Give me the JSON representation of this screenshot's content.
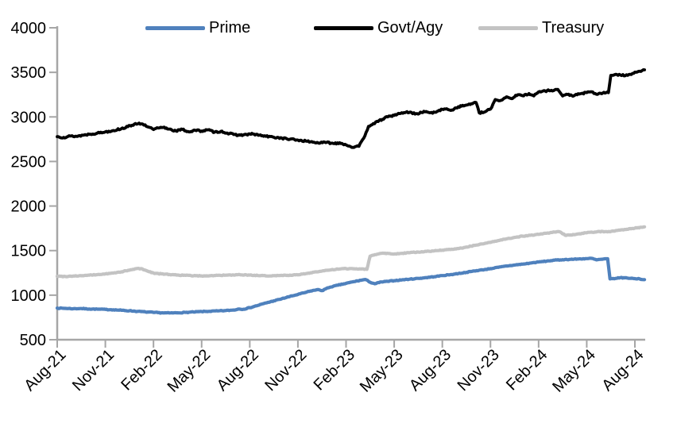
{
  "chart_data": {
    "type": "line",
    "title": "",
    "x_unit": "months since Aug-2021 (fractional = intra-month)",
    "x_axis": {
      "tick_labels": [
        "Aug-21",
        "Nov-21",
        "Feb-22",
        "May-22",
        "Aug-22",
        "Nov-22",
        "Feb-23",
        "May-23",
        "Aug-23",
        "Nov-23",
        "Feb-24",
        "May-24",
        "Aug-24"
      ],
      "tick_interval_months": 3,
      "label_rotation_deg": -45,
      "range_months": [
        0,
        36.6
      ]
    },
    "y_axis": {
      "ticks": [
        500,
        1000,
        1500,
        2000,
        2500,
        3000,
        3500,
        4000
      ],
      "min": 500,
      "max": 4000,
      "gridlines": false
    },
    "axis_color": "#A6A6A6",
    "label_color": "#000000",
    "legend": {
      "position": "top",
      "entries": [
        "Prime",
        "Govt/Agy",
        "Treasury"
      ]
    },
    "series": [
      {
        "name": "Prime",
        "color": "#4F81BD",
        "points": [
          [
            0,
            855
          ],
          [
            0.5,
            852
          ],
          [
            1,
            848
          ],
          [
            1.5,
            850
          ],
          [
            2,
            845
          ],
          [
            2.5,
            843
          ],
          [
            3,
            840
          ],
          [
            3.5,
            836
          ],
          [
            4,
            830
          ],
          [
            4.5,
            825
          ],
          [
            5,
            818
          ],
          [
            5.5,
            812
          ],
          [
            6,
            806
          ],
          [
            6.5,
            802
          ],
          [
            7,
            800
          ],
          [
            7.5,
            802
          ],
          [
            8,
            806
          ],
          [
            8.5,
            811
          ],
          [
            9,
            816
          ],
          [
            9.5,
            819
          ],
          [
            10,
            823
          ],
          [
            10.5,
            827
          ],
          [
            11,
            833
          ],
          [
            11.3,
            845
          ],
          [
            11.6,
            842
          ],
          [
            12,
            860
          ],
          [
            12.5,
            885
          ],
          [
            13,
            912
          ],
          [
            13.5,
            936
          ],
          [
            14,
            960
          ],
          [
            14.5,
            985
          ],
          [
            15,
            1008
          ],
          [
            15.5,
            1032
          ],
          [
            16,
            1055
          ],
          [
            16.3,
            1062
          ],
          [
            16.5,
            1050
          ],
          [
            16.7,
            1068
          ],
          [
            17,
            1090
          ],
          [
            17.5,
            1112
          ],
          [
            18,
            1132
          ],
          [
            18.5,
            1152
          ],
          [
            19,
            1170
          ],
          [
            19.2,
            1176
          ],
          [
            19.5,
            1145
          ],
          [
            19.8,
            1128
          ],
          [
            20.2,
            1148
          ],
          [
            20.6,
            1155
          ],
          [
            21,
            1163
          ],
          [
            21.5,
            1172
          ],
          [
            22,
            1180
          ],
          [
            22.5,
            1188
          ],
          [
            23,
            1197
          ],
          [
            23.5,
            1207
          ],
          [
            24,
            1220
          ],
          [
            24.5,
            1230
          ],
          [
            25,
            1243
          ],
          [
            25.5,
            1256
          ],
          [
            26,
            1272
          ],
          [
            26.5,
            1284
          ],
          [
            27,
            1298
          ],
          [
            27.5,
            1312
          ],
          [
            28,
            1327
          ],
          [
            28.5,
            1338
          ],
          [
            29,
            1348
          ],
          [
            29.5,
            1360
          ],
          [
            30,
            1372
          ],
          [
            30.5,
            1382
          ],
          [
            31,
            1392
          ],
          [
            31.5,
            1398
          ],
          [
            32,
            1402
          ],
          [
            32.5,
            1406
          ],
          [
            33,
            1410
          ],
          [
            33.3,
            1413
          ],
          [
            33.6,
            1396
          ],
          [
            34,
            1404
          ],
          [
            34.3,
            1408
          ],
          [
            34.45,
            1182
          ],
          [
            34.8,
            1188
          ],
          [
            35.1,
            1196
          ],
          [
            35.5,
            1193
          ],
          [
            36,
            1186
          ],
          [
            36.3,
            1182
          ],
          [
            36.6,
            1174
          ]
        ]
      },
      {
        "name": "Govt/Agy",
        "color": "#000000",
        "points": [
          [
            0,
            2778
          ],
          [
            0.4,
            2770
          ],
          [
            0.8,
            2785
          ],
          [
            1.2,
            2782
          ],
          [
            1.6,
            2795
          ],
          [
            2,
            2806
          ],
          [
            2.5,
            2818
          ],
          [
            3,
            2832
          ],
          [
            3.5,
            2848
          ],
          [
            4,
            2868
          ],
          [
            4.4,
            2890
          ],
          [
            4.8,
            2918
          ],
          [
            5.1,
            2930
          ],
          [
            5.4,
            2908
          ],
          [
            5.7,
            2885
          ],
          [
            6,
            2858
          ],
          [
            6.3,
            2875
          ],
          [
            6.6,
            2882
          ],
          [
            7,
            2864
          ],
          [
            7.4,
            2842
          ],
          [
            7.8,
            2860
          ],
          [
            8.2,
            2832
          ],
          [
            8.6,
            2850
          ],
          [
            9,
            2842
          ],
          [
            9.4,
            2855
          ],
          [
            9.8,
            2828
          ],
          [
            10.2,
            2838
          ],
          [
            10.6,
            2818
          ],
          [
            11,
            2802
          ],
          [
            11.4,
            2795
          ],
          [
            11.8,
            2802
          ],
          [
            12.2,
            2808
          ],
          [
            12.6,
            2795
          ],
          [
            13,
            2782
          ],
          [
            13.5,
            2772
          ],
          [
            14,
            2762
          ],
          [
            14.5,
            2750
          ],
          [
            15,
            2740
          ],
          [
            15.5,
            2728
          ],
          [
            16,
            2716
          ],
          [
            16.4,
            2708
          ],
          [
            16.8,
            2715
          ],
          [
            17.2,
            2702
          ],
          [
            17.6,
            2710
          ],
          [
            18,
            2686
          ],
          [
            18.5,
            2658
          ],
          [
            18.8,
            2670
          ],
          [
            19.1,
            2760
          ],
          [
            19.4,
            2895
          ],
          [
            19.7,
            2925
          ],
          [
            20,
            2948
          ],
          [
            20.4,
            2988
          ],
          [
            20.8,
            3010
          ],
          [
            21.2,
            3030
          ],
          [
            21.6,
            3048
          ],
          [
            22,
            3055
          ],
          [
            22.3,
            3032
          ],
          [
            22.7,
            3050
          ],
          [
            23,
            3060
          ],
          [
            23.4,
            3042
          ],
          [
            23.8,
            3075
          ],
          [
            24.2,
            3088
          ],
          [
            24.6,
            3078
          ],
          [
            25,
            3115
          ],
          [
            25.4,
            3128
          ],
          [
            25.8,
            3148
          ],
          [
            26.1,
            3162
          ],
          [
            26.3,
            3045
          ],
          [
            26.6,
            3052
          ],
          [
            27,
            3088
          ],
          [
            27.3,
            3195
          ],
          [
            27.6,
            3182
          ],
          [
            28,
            3225
          ],
          [
            28.3,
            3206
          ],
          [
            28.7,
            3248
          ],
          [
            29,
            3238
          ],
          [
            29.4,
            3262
          ],
          [
            29.7,
            3236
          ],
          [
            30,
            3280
          ],
          [
            30.4,
            3292
          ],
          [
            30.8,
            3298
          ],
          [
            31.2,
            3308
          ],
          [
            31.5,
            3235
          ],
          [
            31.8,
            3252
          ],
          [
            32.2,
            3238
          ],
          [
            32.6,
            3260
          ],
          [
            33,
            3272
          ],
          [
            33.3,
            3282
          ],
          [
            33.6,
            3255
          ],
          [
            34,
            3268
          ],
          [
            34.35,
            3272
          ],
          [
            34.5,
            3466
          ],
          [
            34.8,
            3478
          ],
          [
            35.1,
            3470
          ],
          [
            35.4,
            3462
          ],
          [
            35.7,
            3478
          ],
          [
            36,
            3502
          ],
          [
            36.3,
            3512
          ],
          [
            36.6,
            3528
          ]
        ]
      },
      {
        "name": "Treasury",
        "color": "#C3C3C3",
        "points": [
          [
            0,
            1212
          ],
          [
            0.5,
            1210
          ],
          [
            1,
            1215
          ],
          [
            1.5,
            1218
          ],
          [
            2,
            1224
          ],
          [
            2.5,
            1230
          ],
          [
            3,
            1238
          ],
          [
            3.5,
            1248
          ],
          [
            4,
            1262
          ],
          [
            4.5,
            1280
          ],
          [
            5,
            1300
          ],
          [
            5.3,
            1295
          ],
          [
            5.6,
            1272
          ],
          [
            6,
            1248
          ],
          [
            6.5,
            1238
          ],
          [
            7,
            1232
          ],
          [
            7.5,
            1226
          ],
          [
            8,
            1222
          ],
          [
            8.5,
            1218
          ],
          [
            9,
            1216
          ],
          [
            9.5,
            1218
          ],
          [
            10,
            1222
          ],
          [
            10.5,
            1224
          ],
          [
            11,
            1226
          ],
          [
            11.5,
            1228
          ],
          [
            12,
            1225
          ],
          [
            12.5,
            1220
          ],
          [
            13,
            1216
          ],
          [
            13.5,
            1219
          ],
          [
            14,
            1222
          ],
          [
            14.5,
            1225
          ],
          [
            15,
            1228
          ],
          [
            15.5,
            1242
          ],
          [
            16,
            1258
          ],
          [
            16.5,
            1270
          ],
          [
            17,
            1282
          ],
          [
            17.5,
            1292
          ],
          [
            18,
            1298
          ],
          [
            18.5,
            1296
          ],
          [
            19,
            1295
          ],
          [
            19.3,
            1290
          ],
          [
            19.5,
            1438
          ],
          [
            19.8,
            1455
          ],
          [
            20,
            1462
          ],
          [
            20.3,
            1472
          ],
          [
            20.7,
            1468
          ],
          [
            21,
            1462
          ],
          [
            21.5,
            1470
          ],
          [
            22,
            1478
          ],
          [
            22.5,
            1483
          ],
          [
            23,
            1490
          ],
          [
            23.5,
            1497
          ],
          [
            24,
            1505
          ],
          [
            24.5,
            1512
          ],
          [
            25,
            1522
          ],
          [
            25.5,
            1540
          ],
          [
            26,
            1558
          ],
          [
            26.5,
            1575
          ],
          [
            27,
            1592
          ],
          [
            27.5,
            1612
          ],
          [
            28,
            1632
          ],
          [
            28.5,
            1648
          ],
          [
            29,
            1662
          ],
          [
            29.5,
            1672
          ],
          [
            30,
            1682
          ],
          [
            30.5,
            1695
          ],
          [
            31,
            1708
          ],
          [
            31.3,
            1712
          ],
          [
            31.7,
            1670
          ],
          [
            32,
            1676
          ],
          [
            32.5,
            1688
          ],
          [
            33,
            1700
          ],
          [
            33.5,
            1708
          ],
          [
            34,
            1715
          ],
          [
            34.3,
            1710
          ],
          [
            34.6,
            1720
          ],
          [
            35,
            1730
          ],
          [
            35.5,
            1740
          ],
          [
            36,
            1752
          ],
          [
            36.6,
            1766
          ]
        ]
      }
    ]
  }
}
